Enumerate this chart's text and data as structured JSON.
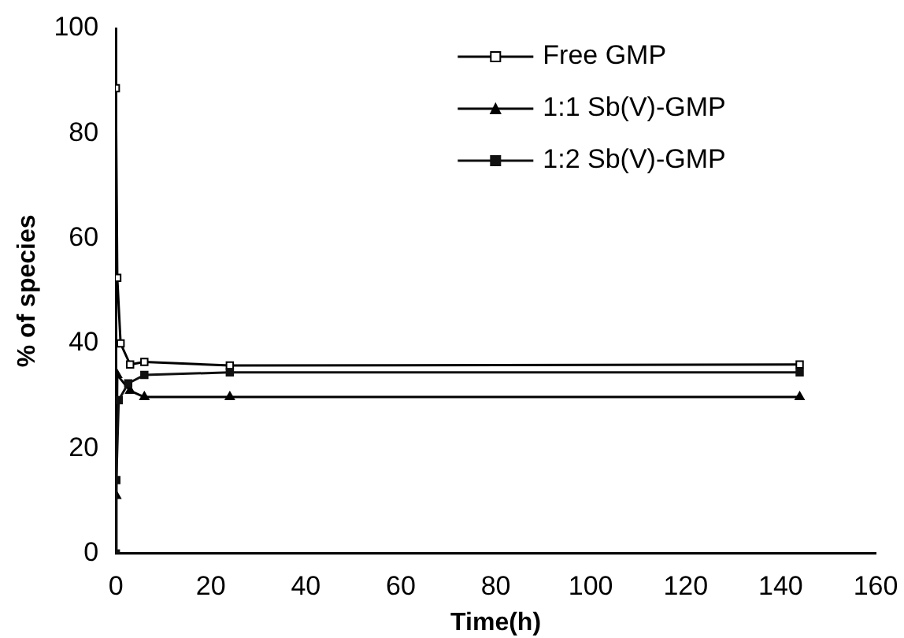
{
  "chart_data": {
    "type": "line",
    "xlabel": "Time(h)",
    "ylabel": "% of species",
    "xlim": [
      0,
      160
    ],
    "xticks": [
      0,
      20,
      40,
      60,
      80,
      100,
      120,
      140,
      160
    ],
    "ylim": [
      0,
      100
    ],
    "yticks": [
      0,
      20,
      40,
      60,
      80,
      100
    ],
    "grid": false,
    "legend": "top right",
    "line_style": "solid",
    "series": [
      {
        "name": "Free GMP",
        "color": "#000000",
        "marker": "square",
        "x": [
          0,
          0.3,
          1,
          3,
          6,
          24,
          144
        ],
        "values": [
          88.6,
          52.5,
          40,
          36,
          36.5,
          35.8,
          36
        ]
      },
      {
        "name": "1:1 Sb(V)-GMP",
        "color": "#000000",
        "marker": "triangle",
        "x": [
          0,
          0.1,
          0.3,
          3,
          6,
          24,
          144
        ],
        "values": [
          0,
          11,
          34,
          31,
          29.8,
          29.8,
          29.8
        ]
      },
      {
        "name": "1:2 Sb(V)-GMP",
        "color": "#111111",
        "marker": "square",
        "x": [
          0,
          0.1,
          0.6,
          2.6,
          6,
          24,
          144
        ],
        "values": [
          0,
          14,
          29.2,
          32.4,
          34,
          34.5,
          34.5
        ]
      }
    ]
  }
}
